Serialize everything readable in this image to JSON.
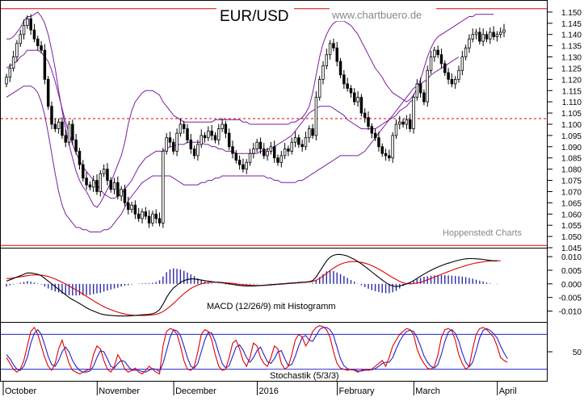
{
  "title": "EUR/USD",
  "watermark": "www.chartbuero.de",
  "credit": "Hoppenstedt Charts",
  "colors": {
    "candle_up": "#ffffff",
    "candle_down": "#000000",
    "bollinger": "#7a1fa0",
    "reference_line": "#e00000",
    "macd_line": "#000000",
    "signal_line": "#e00000",
    "histogram": "#2a2aa8",
    "stoch_k": "#e00000",
    "stoch_d": "#2222cc",
    "stoch_levels": "#2222cc"
  },
  "chart_data": [
    {
      "type": "candlestick",
      "name": "price",
      "ylim": [
        1.045,
        1.155
      ],
      "y_ticks": [
        "1.150",
        "1.145",
        "1.140",
        "1.135",
        "1.130",
        "1.125",
        "1.120",
        "1.115",
        "1.110",
        "1.105",
        "1.100",
        "1.095",
        "1.090",
        "1.085",
        "1.080",
        "1.075",
        "1.070",
        "1.065",
        "1.060",
        "1.055",
        "1.050",
        "1.045"
      ],
      "x_labels": [
        "October",
        "November",
        "December",
        "2016",
        "February",
        "March",
        "April"
      ],
      "x_label_index": [
        0,
        27,
        49,
        73,
        96,
        118,
        142
      ],
      "reference_lines": [
        1.1515,
        1.1025,
        1.046
      ],
      "closes": [
        1.121,
        1.125,
        1.13,
        1.136,
        1.14,
        1.144,
        1.147,
        1.142,
        1.138,
        1.135,
        1.133,
        1.12,
        1.108,
        1.1,
        1.098,
        1.101,
        1.095,
        1.092,
        1.1,
        1.093,
        1.088,
        1.082,
        1.076,
        1.073,
        1.072,
        1.075,
        1.07,
        1.078,
        1.08,
        1.075,
        1.071,
        1.074,
        1.068,
        1.071,
        1.065,
        1.062,
        1.064,
        1.06,
        1.058,
        1.061,
        1.059,
        1.056,
        1.06,
        1.058,
        1.056,
        1.088,
        1.094,
        1.092,
        1.088,
        1.096,
        1.1,
        1.098,
        1.093,
        1.089,
        1.086,
        1.091,
        1.095,
        1.094,
        1.097,
        1.095,
        1.093,
        1.098,
        1.1,
        1.096,
        1.09,
        1.087,
        1.084,
        1.082,
        1.08,
        1.083,
        1.087,
        1.089,
        1.092,
        1.089,
        1.086,
        1.088,
        1.09,
        1.085,
        1.083,
        1.086,
        1.089,
        1.088,
        1.092,
        1.094,
        1.091,
        1.09,
        1.094,
        1.098,
        1.095,
        1.112,
        1.12,
        1.126,
        1.131,
        1.136,
        1.134,
        1.128,
        1.122,
        1.118,
        1.116,
        1.114,
        1.11,
        1.112,
        1.105,
        1.103,
        1.099,
        1.096,
        1.094,
        1.09,
        1.087,
        1.086,
        1.085,
        1.095,
        1.1,
        1.101,
        1.1,
        1.102,
        1.098,
        1.112,
        1.118,
        1.114,
        1.11,
        1.124,
        1.13,
        1.133,
        1.131,
        1.127,
        1.123,
        1.12,
        1.118,
        1.12,
        1.124,
        1.13,
        1.134,
        1.138,
        1.14,
        1.141,
        1.137,
        1.14,
        1.138,
        1.141,
        1.139,
        1.14,
        1.141,
        1.142
      ],
      "bollinger_upper": [
        1.138,
        1.138,
        1.139,
        1.141,
        1.143,
        1.146,
        1.148,
        1.148,
        1.149,
        1.15,
        1.148,
        1.145,
        1.14,
        1.133,
        1.125,
        1.115,
        1.106,
        1.098,
        1.091,
        1.085,
        1.079,
        1.075,
        1.072,
        1.07,
        1.067,
        1.064,
        1.063,
        1.065,
        1.068,
        1.071,
        1.074,
        1.078,
        1.082,
        1.086,
        1.092,
        1.1,
        1.106,
        1.11,
        1.112,
        1.114,
        1.115,
        1.115,
        1.115,
        1.114,
        1.113,
        1.11,
        1.108,
        1.106,
        1.104,
        1.103,
        1.102,
        1.101,
        1.101,
        1.101,
        1.101,
        1.101,
        1.101,
        1.101,
        1.101,
        1.101,
        1.102,
        1.102,
        1.102,
        1.102,
        1.102,
        1.102,
        1.102,
        1.102,
        1.101,
        1.101,
        1.1,
        1.1,
        1.1,
        1.1,
        1.1,
        1.1,
        1.1,
        1.1,
        1.1,
        1.1,
        1.1,
        1.1,
        1.101,
        1.101,
        1.102,
        1.103,
        1.105,
        1.108,
        1.114,
        1.122,
        1.13,
        1.136,
        1.14,
        1.143,
        1.145,
        1.146,
        1.146,
        1.146,
        1.145,
        1.144,
        1.142,
        1.14,
        1.137,
        1.134,
        1.131,
        1.128,
        1.125,
        1.123,
        1.121,
        1.118,
        1.116,
        1.114,
        1.113,
        1.112,
        1.111,
        1.11,
        1.111,
        1.113,
        1.116,
        1.12,
        1.125,
        1.13,
        1.134,
        1.137,
        1.139,
        1.14,
        1.141,
        1.142,
        1.143,
        1.144,
        1.145,
        1.146,
        1.147,
        1.148,
        1.148,
        1.149,
        1.149,
        1.149,
        1.149,
        1.149,
        1.149
      ],
      "bollinger_middle": [
        1.125,
        1.126,
        1.127,
        1.128,
        1.13,
        1.131,
        1.133,
        1.133,
        1.133,
        1.133,
        1.132,
        1.13,
        1.128,
        1.124,
        1.119,
        1.113,
        1.107,
        1.101,
        1.096,
        1.091,
        1.087,
        1.084,
        1.081,
        1.079,
        1.077,
        1.075,
        1.073,
        1.071,
        1.069,
        1.068,
        1.067,
        1.067,
        1.068,
        1.069,
        1.071,
        1.073,
        1.075,
        1.078,
        1.081,
        1.083,
        1.085,
        1.086,
        1.087,
        1.088,
        1.088,
        1.088,
        1.089,
        1.09,
        1.09,
        1.091,
        1.091,
        1.091,
        1.092,
        1.092,
        1.092,
        1.092,
        1.092,
        1.091,
        1.091,
        1.09,
        1.09,
        1.089,
        1.089,
        1.088,
        1.088,
        1.088,
        1.087,
        1.087,
        1.087,
        1.087,
        1.087,
        1.087,
        1.087,
        1.088,
        1.088,
        1.089,
        1.089,
        1.09,
        1.091,
        1.092,
        1.093,
        1.094,
        1.095,
        1.097,
        1.099,
        1.101,
        1.103,
        1.105,
        1.106,
        1.107,
        1.108,
        1.108,
        1.108,
        1.108,
        1.107,
        1.106,
        1.105,
        1.104,
        1.102,
        1.101,
        1.1,
        1.099,
        1.098,
        1.098,
        1.098,
        1.098,
        1.098,
        1.099,
        1.1,
        1.101,
        1.102,
        1.104,
        1.106,
        1.108,
        1.11,
        1.112,
        1.114,
        1.116,
        1.117,
        1.118,
        1.119,
        1.12,
        1.122,
        1.123,
        1.124,
        1.125,
        1.126,
        1.127,
        1.128,
        1.129,
        1.13
      ],
      "bollinger_lower": [
        1.112,
        1.113,
        1.114,
        1.115,
        1.116,
        1.117,
        1.117,
        1.117,
        1.116,
        1.114,
        1.11,
        1.104,
        1.096,
        1.087,
        1.078,
        1.07,
        1.064,
        1.06,
        1.058,
        1.056,
        1.054,
        1.054,
        1.053,
        1.053,
        1.052,
        1.052,
        1.052,
        1.052,
        1.053,
        1.053,
        1.054,
        1.056,
        1.058,
        1.06,
        1.063,
        1.066,
        1.068,
        1.07,
        1.072,
        1.074,
        1.075,
        1.076,
        1.077,
        1.077,
        1.077,
        1.077,
        1.077,
        1.077,
        1.076,
        1.075,
        1.074,
        1.073,
        1.073,
        1.073,
        1.073,
        1.073,
        1.074,
        1.074,
        1.075,
        1.075,
        1.076,
        1.076,
        1.077,
        1.077,
        1.077,
        1.077,
        1.077,
        1.077,
        1.077,
        1.077,
        1.077,
        1.077,
        1.077,
        1.077,
        1.077,
        1.076,
        1.076,
        1.075,
        1.075,
        1.074,
        1.074,
        1.074,
        1.074,
        1.074,
        1.075,
        1.075,
        1.076,
        1.077,
        1.078,
        1.079,
        1.08,
        1.081,
        1.082,
        1.083,
        1.084,
        1.085,
        1.086,
        1.086,
        1.086,
        1.086,
        1.086,
        1.086,
        1.087,
        1.088,
        1.09,
        1.092,
        1.094,
        1.096,
        1.098,
        1.1,
        1.102,
        1.103,
        1.104,
        1.106,
        1.107,
        1.108,
        1.11,
        1.111
      ]
    },
    {
      "type": "line",
      "name": "macd",
      "label": "MACD (12/26/9) mit Histogramm",
      "ylim": [
        -0.014,
        0.013
      ],
      "y_ticks": [
        "0.010",
        "0.005",
        "0.000",
        "-0.005",
        "-0.010"
      ],
      "macd": [
        0.001,
        0.0015,
        0.002,
        0.0025,
        0.003,
        0.0035,
        0.004,
        0.004,
        0.0038,
        0.0035,
        0.003,
        0.002,
        0.001,
        0.0,
        -0.001,
        -0.002,
        -0.003,
        -0.004,
        -0.005,
        -0.0058,
        -0.0065,
        -0.0072,
        -0.008,
        -0.0088,
        -0.0095,
        -0.01,
        -0.0105,
        -0.011,
        -0.0113,
        -0.0115,
        -0.0116,
        -0.0117,
        -0.0118,
        -0.0118,
        -0.0118,
        -0.0118,
        -0.0117,
        -0.0116,
        -0.0115,
        -0.0114,
        -0.0113,
        -0.0112,
        -0.011,
        -0.0105,
        -0.0095,
        -0.0075,
        -0.005,
        -0.003,
        -0.0015,
        -0.0005,
        0.0005,
        0.0012,
        0.0016,
        0.0018,
        0.0018,
        0.0016,
        0.0014,
        0.0012,
        0.001,
        0.0008,
        0.0006,
        0.0005,
        0.0004,
        0.0002,
        0.0,
        -0.0002,
        -0.0004,
        -0.0006,
        -0.0007,
        -0.0008,
        -0.0008,
        -0.0008,
        -0.0007,
        -0.0006,
        -0.0005,
        -0.0004,
        -0.0003,
        -0.0002,
        -0.0001,
        0.0,
        0.0001,
        0.0002,
        0.0003,
        0.0004,
        0.0005,
        0.0006,
        0.0007,
        0.0008,
        0.0012,
        0.0025,
        0.0045,
        0.0065,
        0.0085,
        0.0098,
        0.0105,
        0.0108,
        0.0108,
        0.0106,
        0.0102,
        0.0096,
        0.009,
        0.0082,
        0.0074,
        0.0064,
        0.0054,
        0.0044,
        0.0034,
        0.0024,
        0.0014,
        0.0005,
        -0.0003,
        -0.0008,
        -0.001,
        -0.0008,
        -0.0004,
        0.0,
        0.0005,
        0.0012,
        0.002,
        0.0028,
        0.0036,
        0.0043,
        0.005,
        0.0056,
        0.0062,
        0.0067,
        0.0072,
        0.0076,
        0.008,
        0.0084,
        0.0087,
        0.009,
        0.0092,
        0.0093,
        0.0093,
        0.0092,
        0.0091,
        0.009,
        0.0088,
        0.0086,
        0.0085,
        0.0084
      ],
      "signal": [
        0.002,
        0.002,
        0.0022,
        0.0024,
        0.0026,
        0.0028,
        0.003,
        0.0032,
        0.0033,
        0.0033,
        0.0032,
        0.003,
        0.0027,
        0.0023,
        0.0018,
        0.0012,
        0.0006,
        0.0,
        -0.0008,
        -0.0015,
        -0.0022,
        -0.003,
        -0.0038,
        -0.0046,
        -0.0054,
        -0.0062,
        -0.007,
        -0.0077,
        -0.0084,
        -0.009,
        -0.0095,
        -0.01,
        -0.0104,
        -0.0108,
        -0.0111,
        -0.0113,
        -0.0115,
        -0.0116,
        -0.0116,
        -0.0116,
        -0.0116,
        -0.0115,
        -0.0114,
        -0.0112,
        -0.0108,
        -0.0102,
        -0.0093,
        -0.0083,
        -0.0072,
        -0.006,
        -0.0048,
        -0.0036,
        -0.0026,
        -0.0017,
        -0.001,
        -0.0004,
        0.0,
        0.0003,
        0.0005,
        0.0006,
        0.0006,
        0.0006,
        0.0005,
        0.0004,
        0.0003,
        0.0002,
        0.0,
        -0.0002,
        -0.0003,
        -0.0004,
        -0.0005,
        -0.0006,
        -0.0006,
        -0.0006,
        -0.0006,
        -0.0005,
        -0.0004,
        -0.0003,
        -0.0002,
        -0.0001,
        0.0,
        0.0001,
        0.0002,
        0.0003,
        0.0004,
        0.0005,
        0.0006,
        0.0007,
        0.0009,
        0.0013,
        0.002,
        0.0029,
        0.0039,
        0.0049,
        0.0058,
        0.0066,
        0.0072,
        0.0077,
        0.008,
        0.0082,
        0.0082,
        0.0081,
        0.0079,
        0.0076,
        0.0072,
        0.0067,
        0.0061,
        0.0054,
        0.0047,
        0.0039,
        0.0031,
        0.0023,
        0.0016,
        0.0009,
        0.0004,
        0.0001,
        0.0,
        0.0001,
        0.0003,
        0.0006,
        0.001,
        0.0015,
        0.002,
        0.0025,
        0.003,
        0.0035,
        0.004,
        0.0045,
        0.005,
        0.0055,
        0.0059,
        0.0063,
        0.0067,
        0.0071,
        0.0074,
        0.0077,
        0.0079,
        0.0081,
        0.0083,
        0.0084,
        0.0085,
        0.0085,
        0.0085
      ]
    },
    {
      "type": "line",
      "name": "stochastic",
      "label": "Stochastik (5/3/3)",
      "ylim": [
        0,
        100
      ],
      "y_ticks": [
        "50"
      ],
      "levels": [
        80,
        20
      ],
      "k": [
        40,
        30,
        20,
        15,
        20,
        35,
        60,
        85,
        92,
        80,
        60,
        40,
        25,
        18,
        30,
        55,
        70,
        50,
        30,
        18,
        15,
        12,
        15,
        18,
        20,
        45,
        60,
        55,
        35,
        20,
        15,
        25,
        45,
        35,
        20,
        15,
        18,
        22,
        15,
        12,
        18,
        25,
        20,
        15,
        12,
        60,
        85,
        90,
        88,
        80,
        60,
        35,
        20,
        18,
        25,
        50,
        80,
        88,
        85,
        70,
        45,
        25,
        18,
        20,
        40,
        65,
        70,
        55,
        35,
        25,
        40,
        65,
        60,
        40,
        30,
        25,
        40,
        60,
        55,
        30,
        20,
        25,
        45,
        70,
        80,
        75,
        60,
        70,
        85,
        92,
        95,
        93,
        88,
        75,
        50,
        30,
        22,
        20,
        18,
        20,
        18,
        15,
        18,
        20,
        18,
        20,
        25,
        30,
        35,
        25,
        40,
        60,
        70,
        80,
        85,
        90,
        88,
        80,
        55,
        40,
        30,
        22,
        20,
        25,
        45,
        75,
        88,
        90,
        86,
        70,
        45,
        30,
        20,
        25,
        55,
        80,
        90,
        92,
        88,
        82,
        75,
        60,
        40,
        35,
        32
      ],
      "d": [
        45,
        38,
        28,
        20,
        18,
        25,
        40,
        65,
        82,
        88,
        80,
        62,
        42,
        28,
        25,
        35,
        50,
        58,
        50,
        35,
        25,
        18,
        15,
        15,
        17,
        25,
        40,
        52,
        50,
        38,
        25,
        22,
        30,
        35,
        33,
        25,
        18,
        18,
        18,
        16,
        15,
        18,
        21,
        20,
        16,
        30,
        52,
        75,
        88,
        86,
        78,
        60,
        40,
        25,
        22,
        30,
        50,
        70,
        84,
        82,
        68,
        48,
        30,
        22,
        26,
        42,
        58,
        62,
        53,
        40,
        32,
        40,
        52,
        58,
        45,
        33,
        30,
        38,
        50,
        52,
        38,
        26,
        28,
        42,
        60,
        75,
        78,
        70,
        68,
        78,
        88,
        92,
        92,
        88,
        78,
        58,
        38,
        26,
        21,
        19,
        19,
        17,
        17,
        18,
        19,
        19,
        21,
        25,
        30,
        32,
        32,
        40,
        55,
        68,
        78,
        85,
        87,
        85,
        75,
        60,
        43,
        32,
        25,
        22,
        28,
        46,
        68,
        84,
        88,
        82,
        68,
        48,
        32,
        24,
        32,
        52,
        74,
        87,
        90,
        87,
        81,
        74,
        60,
        48,
        38
      ]
    }
  ]
}
